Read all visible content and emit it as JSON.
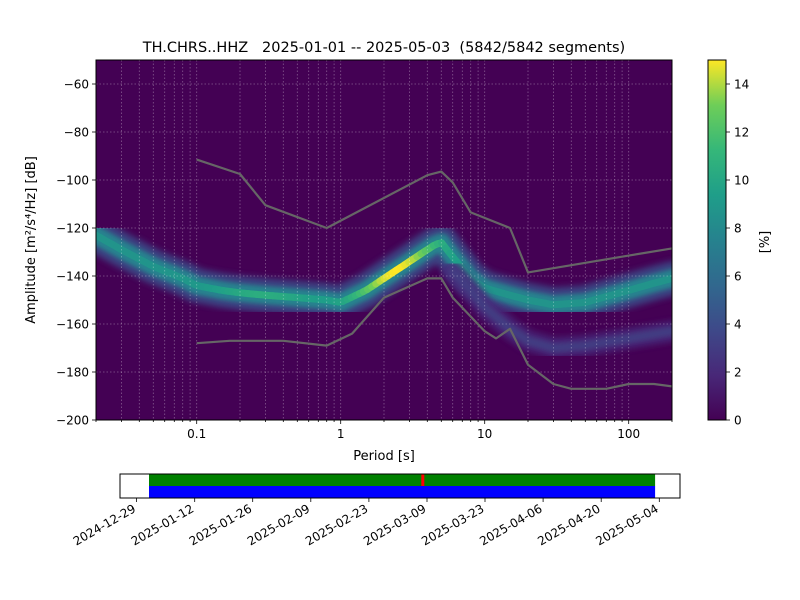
{
  "chart_data": [
    {
      "type": "heatmap",
      "title": "TH.CHRS..HHZ   2025-01-01 -- 2025-05-03  (5842/5842 segments)",
      "xlabel": "Period [s]",
      "ylabel": "Amplitude [m²/s⁴/Hz] [dB]",
      "x_scale": "log",
      "xlim": [
        0.02,
        200
      ],
      "ylim": [
        -200,
        -50
      ],
      "x_ticks": [
        0.1,
        1,
        10,
        100
      ],
      "x_tick_labels": [
        "0.1",
        "1",
        "10",
        "100"
      ],
      "y_ticks": [
        -200,
        -180,
        -160,
        -140,
        -120,
        -100,
        -80,
        -60
      ],
      "y_tick_labels": [
        "−200",
        "−180",
        "−160",
        "−140",
        "−120",
        "−100",
        "−80",
        "−60"
      ],
      "grid": true,
      "colormap": "viridis",
      "colorbar": {
        "label": "[%]",
        "range": [
          0,
          15
        ],
        "ticks": [
          0,
          2,
          4,
          6,
          8,
          10,
          12,
          14
        ],
        "tick_labels": [
          "0",
          "2",
          "4",
          "6",
          "8",
          "10",
          "12",
          "14"
        ]
      },
      "density_ridges": [
        {
          "period": [
            0.02,
            0.03,
            0.05,
            0.08,
            0.1,
            0.15,
            0.2,
            0.3,
            0.5,
            0.8,
            1.0,
            1.5,
            2,
            3,
            4,
            4.5,
            5,
            6,
            8,
            10,
            15,
            20,
            30,
            50,
            100,
            150,
            200
          ],
          "db": [
            -123,
            -129,
            -136,
            -141,
            -144,
            -146,
            -147,
            -148,
            -149,
            -150,
            -151,
            -146,
            -141,
            -134,
            -129,
            -127,
            -126,
            -132,
            -141,
            -145,
            -148,
            -150,
            -152,
            -151,
            -146,
            -143,
            -141
          ],
          "peak_percent": 15
        },
        {
          "period": [
            6,
            8,
            10,
            15,
            20,
            30,
            50,
            100,
            200
          ],
          "db": [
            -138,
            -146,
            -153,
            -162,
            -167,
            -170,
            -169,
            -166,
            -163
          ],
          "peak_percent": 3
        }
      ],
      "series": [
        {
          "period": [
            0.1,
            0.2,
            0.3,
            0.8,
            4,
            5,
            6,
            8,
            15,
            20,
            100,
            200
          ],
          "values": [
            -91.5,
            -97.5,
            -110.5,
            -120,
            -98,
            -96.5,
            -101,
            -113.5,
            -120,
            -138.5,
            -131.5,
            -128.5
          ],
          "color": "#666666"
        },
        {
          "period": [
            0.1,
            0.17,
            0.4,
            0.8,
            1.2,
            2,
            4,
            5,
            6,
            10,
            12,
            15,
            20,
            30,
            40,
            70,
            100,
            150,
            200
          ],
          "values": [
            -168,
            -167,
            -167,
            -169,
            -164,
            -149,
            -141,
            -141,
            -149,
            -163,
            -166,
            -162,
            -177,
            -185,
            -187,
            -187,
            -185,
            -185,
            -186
          ],
          "color": "#666666"
        }
      ]
    },
    {
      "type": "timeline",
      "x_ticks": [
        "2024-12-29",
        "2025-01-12",
        "2025-01-26",
        "2025-02-09",
        "2025-02-23",
        "2025-03-09",
        "2025-03-23",
        "2025-04-06",
        "2025-04-20",
        "2025-05-04"
      ],
      "xlim": [
        "2024-12-25",
        "2025-05-09"
      ],
      "coverage": [
        {
          "color": "#008000",
          "start": "2025-01-01",
          "end": "2025-05-03"
        },
        {
          "color": "#0000ff",
          "start": "2025-01-01",
          "end": "2025-05-03"
        }
      ],
      "marker": {
        "date": "2025-03-08",
        "color": "#ff0000"
      }
    }
  ]
}
